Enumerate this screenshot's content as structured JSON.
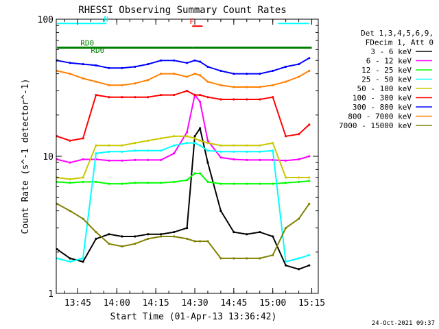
{
  "chart_data": {
    "type": "line",
    "title": "RHESSI Observing Summary Count Rates",
    "xlabel": "Start Time (01-Apr-13 13:36:42)",
    "ylabel": "Count Rate (s^-1 detector^-1)",
    "y_scale": "log",
    "ylim": [
      1,
      100
    ],
    "xlim": [
      "13:36:42",
      "15:17:30"
    ],
    "x_ticks": [
      "13:45",
      "14:00",
      "14:15",
      "14:30",
      "14:45",
      "15:00",
      "15:15"
    ],
    "y_ticks": [
      "1",
      "10",
      "100"
    ],
    "grid": false,
    "legend_position": "right",
    "legend_header": [
      "Det 1,3,4,5,6,9,",
      "FDecim 1, Att 0"
    ],
    "annotations": [
      {
        "text": "RD0",
        "at": "13:46",
        "y": 62
      },
      {
        "text": "RD0",
        "at": "13:50",
        "y": 55
      },
      {
        "text": "N",
        "at": "13:55",
        "y": 93
      },
      {
        "text": "F",
        "at": "14:28",
        "y": 89
      }
    ],
    "flags": [
      {
        "name": "night",
        "color": "#00ffff",
        "segments": [
          [
            "13:37",
            "13:56"
          ],
          [
            "15:02",
            "15:14"
          ]
        ]
      },
      {
        "name": "flare",
        "color": "#ff0000",
        "segments": [
          [
            "14:29",
            "14:33"
          ]
        ]
      },
      {
        "name": "RD0",
        "color": "#008000",
        "segments": [
          [
            "13:37",
            "13:47"
          ],
          [
            "13:47",
            "14:15"
          ],
          [
            "14:15",
            "14:29"
          ],
          [
            "14:29",
            "15:15"
          ]
        ]
      }
    ],
    "x": [
      "13:37",
      "13:42",
      "13:47",
      "13:52",
      "13:57",
      "14:02",
      "14:07",
      "14:12",
      "14:17",
      "14:22",
      "14:27",
      "14:30",
      "14:32",
      "14:35",
      "14:40",
      "14:45",
      "14:50",
      "14:55",
      "15:00",
      "15:05",
      "15:10",
      "15:14"
    ],
    "series": [
      {
        "name": "3 - 6 keV",
        "color": "#000000",
        "values": [
          2.1,
          1.8,
          1.7,
          2.5,
          2.7,
          2.6,
          2.6,
          2.7,
          2.7,
          2.8,
          3.0,
          14.0,
          16.0,
          9.0,
          4.0,
          2.8,
          2.7,
          2.8,
          2.6,
          1.6,
          1.5,
          1.6
        ]
      },
      {
        "name": "6 - 12 keV",
        "color": "#ff00ff",
        "values": [
          9.5,
          9.0,
          9.5,
          9.5,
          9.3,
          9.3,
          9.4,
          9.4,
          9.4,
          10.5,
          15.0,
          28.0,
          25.0,
          13.0,
          9.8,
          9.5,
          9.4,
          9.4,
          9.4,
          9.3,
          9.5,
          10.0
        ]
      },
      {
        "name": "12 - 25 keV",
        "color": "#00ff00",
        "values": [
          6.5,
          6.4,
          6.5,
          6.5,
          6.3,
          6.3,
          6.4,
          6.4,
          6.4,
          6.5,
          6.7,
          7.5,
          7.5,
          6.5,
          6.3,
          6.3,
          6.3,
          6.3,
          6.3,
          6.4,
          6.5,
          6.6
        ]
      },
      {
        "name": "25 - 50 keV",
        "color": "#00ffff",
        "values": [
          1.8,
          1.7,
          1.8,
          10.5,
          10.8,
          10.8,
          11.0,
          11.0,
          11.0,
          12.0,
          12.5,
          12.5,
          12.0,
          11.0,
          10.8,
          10.8,
          10.8,
          10.8,
          11.0,
          1.7,
          1.8,
          1.9
        ]
      },
      {
        "name": "50 - 100 keV",
        "color": "#c8c800",
        "values": [
          7.0,
          6.8,
          7.0,
          12.0,
          12.0,
          12.0,
          12.5,
          13.0,
          13.5,
          14.0,
          14.0,
          13.5,
          13.0,
          12.5,
          12.0,
          12.0,
          12.0,
          12.0,
          12.5,
          7.0,
          7.0,
          7.0
        ]
      },
      {
        "name": "100 - 300 keV",
        "color": "#ff0000",
        "values": [
          14.0,
          13.0,
          13.5,
          28.0,
          27.0,
          27.0,
          27.0,
          27.0,
          28.0,
          28.0,
          30.0,
          28.0,
          28.0,
          27.0,
          26.0,
          26.0,
          26.0,
          26.0,
          27.0,
          14.0,
          14.5,
          17.0
        ]
      },
      {
        "name": "300 - 800 keV",
        "color": "#0000ff",
        "values": [
          50.0,
          48.0,
          47.0,
          46.0,
          44.0,
          44.0,
          45.0,
          47.0,
          50.0,
          50.0,
          48.0,
          50.0,
          49.0,
          45.0,
          42.0,
          40.0,
          40.0,
          40.0,
          42.0,
          45.0,
          47.0,
          52.0
        ]
      },
      {
        "name": "800 - 7000 keV",
        "color": "#ff8000",
        "values": [
          42.0,
          40.0,
          37.0,
          35.0,
          33.0,
          33.0,
          34.0,
          36.0,
          40.0,
          40.0,
          38.0,
          40.0,
          39.0,
          35.0,
          33.0,
          32.0,
          32.0,
          32.0,
          33.0,
          35.0,
          38.0,
          42.0
        ]
      },
      {
        "name": "7000 - 15000 keV",
        "color": "#808000",
        "values": [
          4.5,
          4.0,
          3.5,
          2.8,
          2.3,
          2.2,
          2.3,
          2.5,
          2.6,
          2.6,
          2.5,
          2.4,
          2.4,
          2.4,
          1.8,
          1.8,
          1.8,
          1.8,
          1.9,
          3.0,
          3.5,
          4.5
        ]
      }
    ]
  },
  "footer": {
    "stamp": "24-Oct-2021 09:37"
  }
}
